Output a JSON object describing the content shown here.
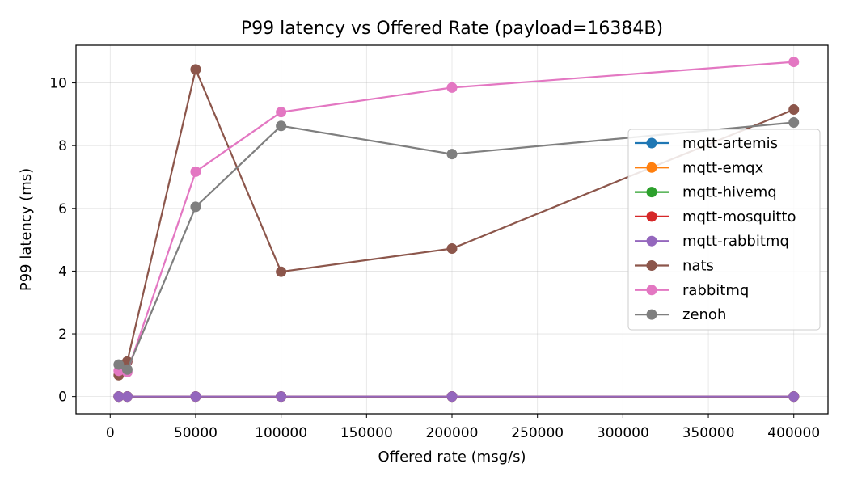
{
  "chart_data": {
    "type": "line",
    "title": "P99 latency vs Offered Rate (payload=16384B)",
    "xlabel": "Offered rate (msg/s)",
    "ylabel": "P99 latency (ms)",
    "xlim": [
      -20000,
      420000
    ],
    "ylim": [
      -0.55,
      11.2
    ],
    "xticks": [
      0,
      50000,
      100000,
      150000,
      200000,
      250000,
      300000,
      350000,
      400000
    ],
    "yticks": [
      0,
      2,
      4,
      6,
      8,
      10
    ],
    "grid": true,
    "legend_position": "center-right",
    "x": [
      5000,
      10000,
      50000,
      100000,
      200000,
      400000
    ],
    "series": [
      {
        "name": "mqtt-artemis",
        "color": "#1f77b4",
        "values": [
          0,
          0,
          0,
          0,
          0,
          0
        ]
      },
      {
        "name": "mqtt-emqx",
        "color": "#ff7f0e",
        "values": [
          0,
          0,
          0,
          0,
          0,
          0
        ]
      },
      {
        "name": "mqtt-hivemq",
        "color": "#2ca02c",
        "values": [
          0,
          0,
          0,
          0,
          0,
          0
        ]
      },
      {
        "name": "mqtt-mosquitto",
        "color": "#d62728",
        "values": [
          0,
          0,
          0,
          0,
          0,
          0
        ]
      },
      {
        "name": "mqtt-rabbitmq",
        "color": "#9467bd",
        "values": [
          0,
          0,
          0,
          0,
          0,
          0
        ]
      },
      {
        "name": "nats",
        "color": "#8c564b",
        "values": [
          0.68,
          1.12,
          10.43,
          3.98,
          4.72,
          9.15
        ]
      },
      {
        "name": "rabbitmq",
        "color": "#e377c2",
        "values": [
          0.82,
          0.78,
          7.17,
          9.07,
          9.85,
          10.67
        ]
      },
      {
        "name": "zenoh",
        "color": "#7f7f7f",
        "values": [
          1.02,
          0.86,
          6.05,
          8.63,
          7.73,
          8.74
        ]
      }
    ]
  }
}
